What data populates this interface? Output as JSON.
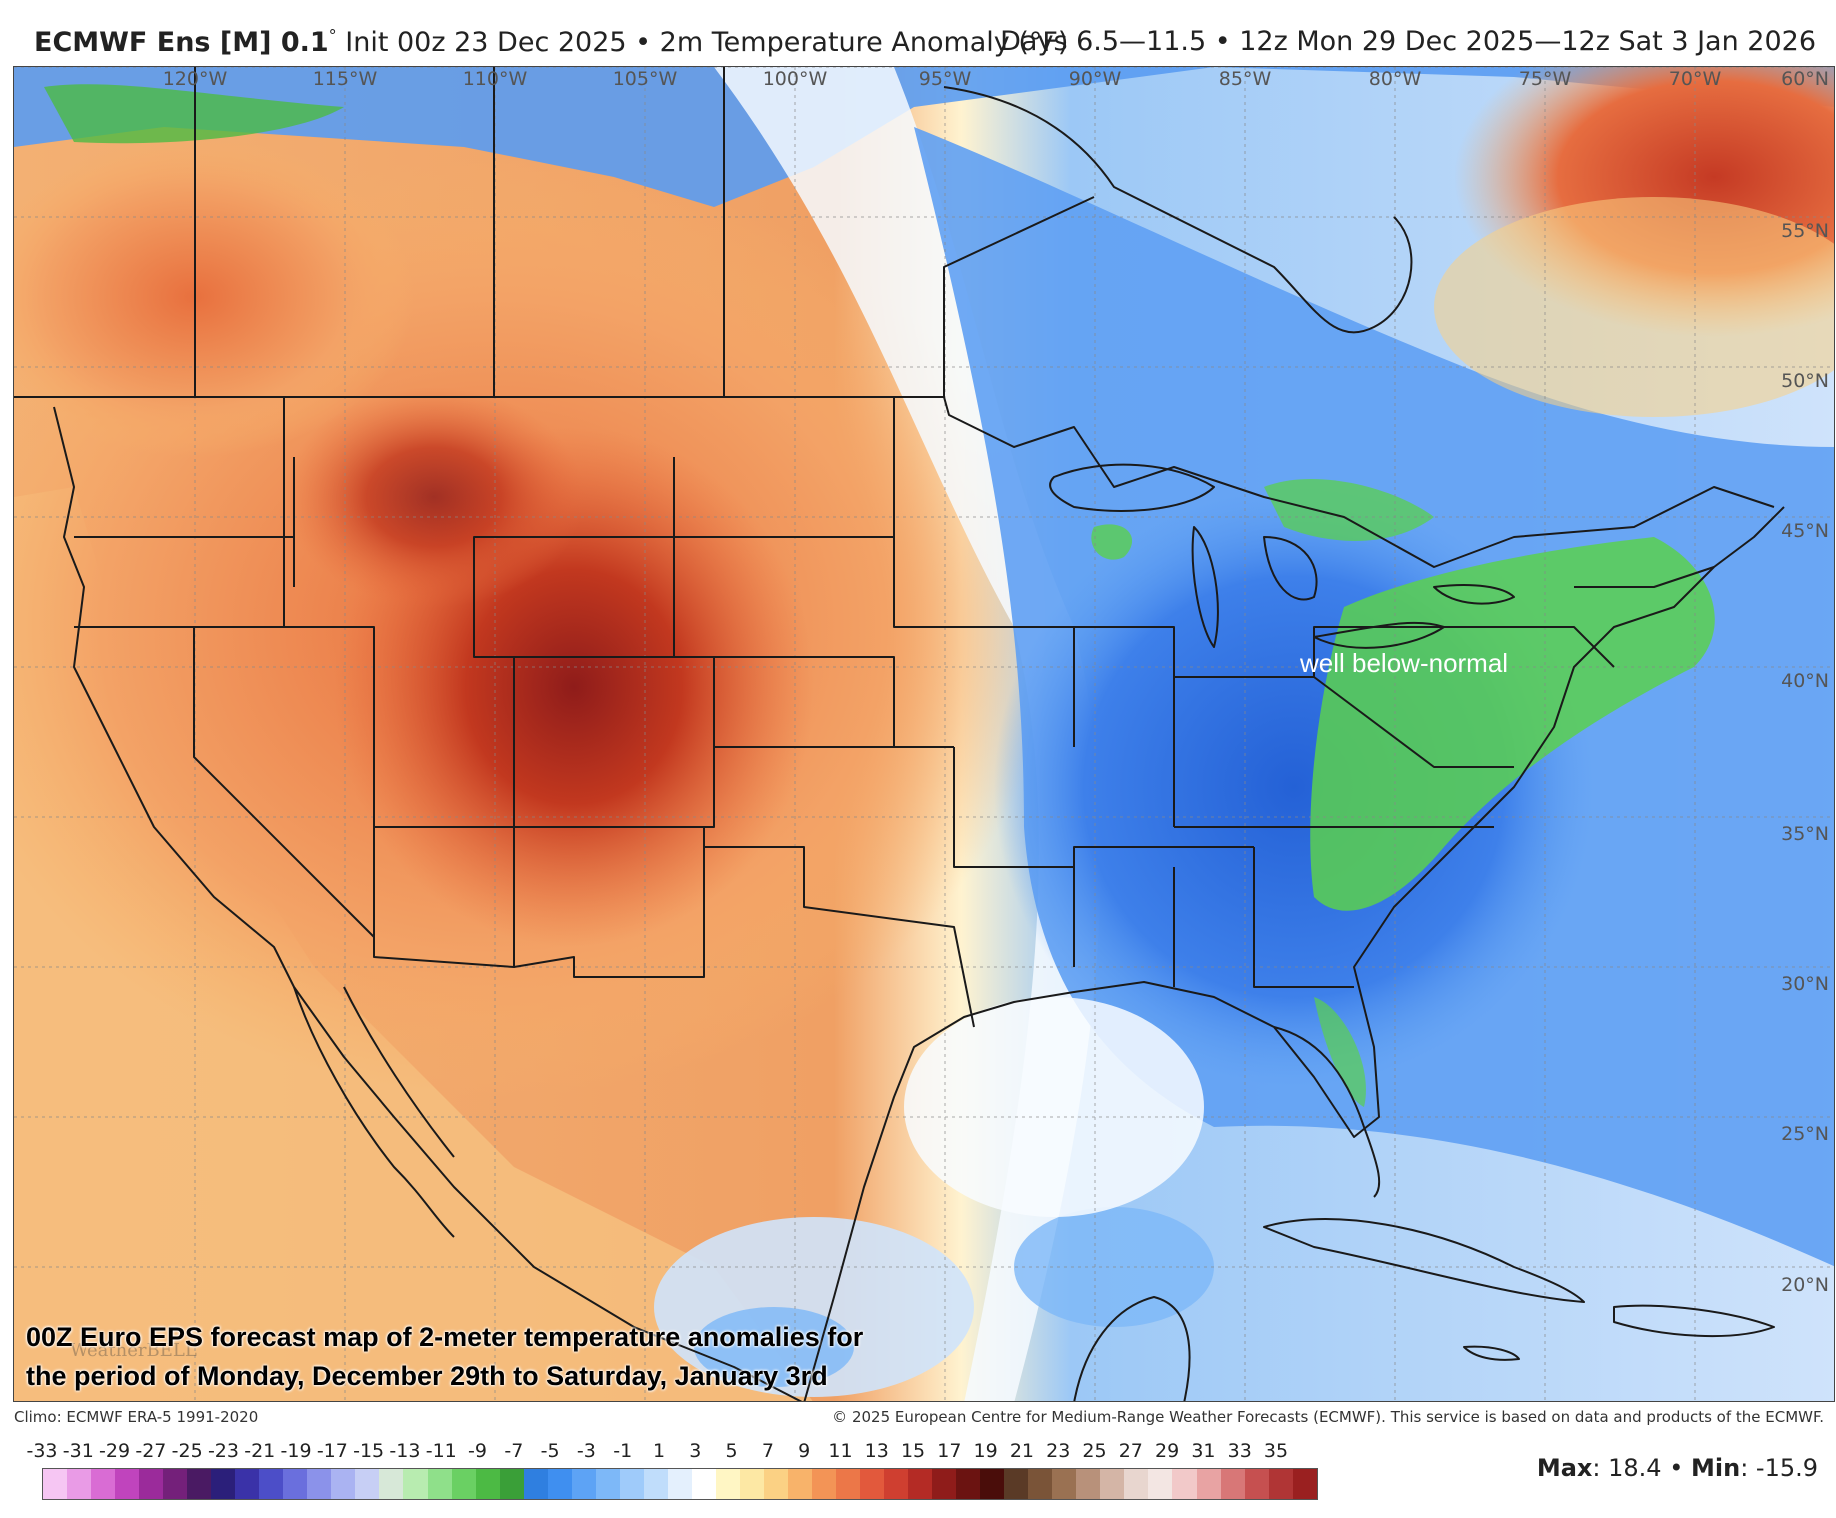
{
  "header": {
    "model": "ECMWF Ens [M] 0.1",
    "degree": "°",
    "init": " Init 00z 23 Dec 2025 • 2m Temperature Anomaly (°F)",
    "valid": "Days 6.5—11.5 • 12z Mon 29 Dec 2025—12z Sat 3 Jan 2026"
  },
  "map": {
    "lon_labels": [
      "120°W",
      "115°W",
      "110°W",
      "105°W",
      "100°W",
      "95°W",
      "90°W",
      "85°W",
      "80°W",
      "75°W",
      "70°W"
    ],
    "lat_labels": [
      "60°N",
      "55°N",
      "50°N",
      "45°N",
      "40°N",
      "35°N",
      "30°N",
      "25°N",
      "20°N"
    ],
    "annotation": "well below-normal",
    "caption_line1": "00Z Euro EPS forecast map of 2-meter temperature anomalies for",
    "caption_line2": "the period of Monday, December 29th to Saturday, January 3rd",
    "watermark": "WeatherBELL"
  },
  "credits": {
    "climo": "Climo: ECMWF ERA-5 1991-2020",
    "copyright": "© 2025 European Centre for Medium-Range Weather Forecasts (ECMWF). This service is based on data and products of the ECMWF."
  },
  "legend": {
    "ticks": [
      "-33",
      "-31",
      "-29",
      "-27",
      "-25",
      "-23",
      "-21",
      "-19",
      "-17",
      "-15",
      "-13",
      "-11",
      "-9",
      "-7",
      "-5",
      "-3",
      "-1",
      "1",
      "3",
      "5",
      "7",
      "9",
      "11",
      "13",
      "15",
      "17",
      "19",
      "21",
      "23",
      "25",
      "27",
      "29",
      "31",
      "33",
      "35"
    ],
    "colors": [
      "#f6c6f3",
      "#e99be6",
      "#d96cd4",
      "#c044bd",
      "#9b2b9b",
      "#74207a",
      "#4a1a63",
      "#2b1f7a",
      "#3a32a8",
      "#4c4ec8",
      "#6a6fdd",
      "#8b92ea",
      "#aab3f2",
      "#c7cff5",
      "#d7e8d8",
      "#b8ecb0",
      "#8fe08a",
      "#6ad063",
      "#4cba44",
      "#3a9f38",
      "#2f7fe0",
      "#3f8ff0",
      "#5da3f5",
      "#7db8f8",
      "#9fcbfa",
      "#c0ddfb",
      "#e4f0fd",
      "#ffffff",
      "#fff6c4",
      "#fde8a4",
      "#fbd184",
      "#f8b36a",
      "#f39456",
      "#ec7748",
      "#e2593c",
      "#cf3f30",
      "#b42b25",
      "#8f1c1a",
      "#6b1311",
      "#4a0d0a",
      "#5a3a26",
      "#7a5438",
      "#9a7152",
      "#b8917a",
      "#d4b5a6",
      "#e8d6cf",
      "#f3e6e3",
      "#f2c9c9",
      "#e8a3a3",
      "#d87777",
      "#c65050",
      "#b03535",
      "#9a2020"
    ]
  },
  "stats": {
    "max_label": "Max",
    "max_value": ": 18.4 • ",
    "min_label": "Min",
    "min_value": ": -15.9"
  }
}
